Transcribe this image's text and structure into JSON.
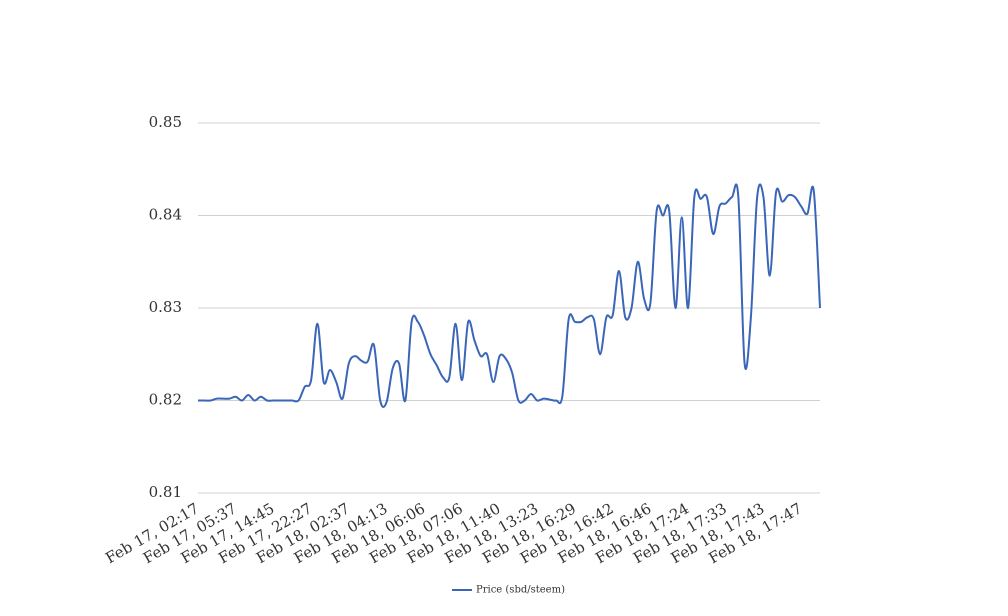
{
  "chart_data": {
    "type": "line",
    "categories": [
      "Feb 17, 02:17",
      null,
      null,
      null,
      null,
      null,
      "Feb 17, 05:37",
      null,
      null,
      null,
      null,
      null,
      "Feb 17, 14:45",
      null,
      null,
      null,
      null,
      null,
      "Feb 17, 22:27",
      null,
      null,
      null,
      null,
      null,
      "Feb 18, 02:37",
      null,
      null,
      null,
      null,
      null,
      "Feb 18, 04:13",
      null,
      null,
      null,
      null,
      null,
      "Feb 18, 06:06",
      null,
      null,
      null,
      null,
      null,
      "Feb 18, 07:06",
      null,
      null,
      null,
      null,
      null,
      "Feb 18, 11:40",
      null,
      null,
      null,
      null,
      null,
      "Feb 18, 13:23",
      null,
      null,
      null,
      null,
      null,
      "Feb 18, 16:29",
      null,
      null,
      null,
      null,
      null,
      "Feb 18, 16:42",
      null,
      null,
      null,
      null,
      null,
      "Feb 18, 16:46",
      null,
      null,
      null,
      null,
      null,
      "Feb 18, 17:24",
      null,
      null,
      null,
      null,
      null,
      "Feb 18, 17:33",
      null,
      null,
      null,
      null,
      null,
      "Feb 18, 17:43",
      null,
      null,
      null,
      null,
      null,
      "Feb 18, 17:47",
      null,
      null,
      null
    ],
    "series": [
      {
        "name": "Price (sbd/steem)",
        "color": "#3a66b8",
        "values": [
          0.82,
          0.82,
          0.82,
          0.8202,
          0.8202,
          0.8202,
          0.8204,
          0.82,
          0.8206,
          0.82,
          0.8204,
          0.82,
          0.82,
          0.82,
          0.82,
          0.82,
          0.82,
          0.8215,
          0.8222,
          0.8283,
          0.822,
          0.8233,
          0.822,
          0.8202,
          0.824,
          0.8248,
          0.8243,
          0.8242,
          0.826,
          0.82,
          0.8198,
          0.8235,
          0.824,
          0.82,
          0.8285,
          0.8285,
          0.827,
          0.825,
          0.8238,
          0.8225,
          0.8225,
          0.8283,
          0.8222,
          0.8285,
          0.8265,
          0.8248,
          0.825,
          0.822,
          0.8248,
          0.8245,
          0.823,
          0.82,
          0.82,
          0.8207,
          0.82,
          0.8202,
          0.8201,
          0.82,
          0.8205,
          0.8288,
          0.8285,
          0.8285,
          0.829,
          0.8288,
          0.825,
          0.829,
          0.8292,
          0.834,
          0.829,
          0.83,
          0.835,
          0.831,
          0.8305,
          0.8405,
          0.84,
          0.8405,
          0.83,
          0.8398,
          0.83,
          0.842,
          0.8418,
          0.842,
          0.838,
          0.841,
          0.8413,
          0.842,
          0.842,
          0.824,
          0.829,
          0.842,
          0.842,
          0.8335,
          0.8425,
          0.8415,
          0.8422,
          0.842,
          0.841,
          0.8402,
          0.8427,
          0.83
        ]
      }
    ],
    "ylim": [
      0.81,
      0.85
    ],
    "yticks": [
      0.81,
      0.82,
      0.83,
      0.84,
      0.85
    ],
    "grid": true,
    "legend": "bottom"
  }
}
